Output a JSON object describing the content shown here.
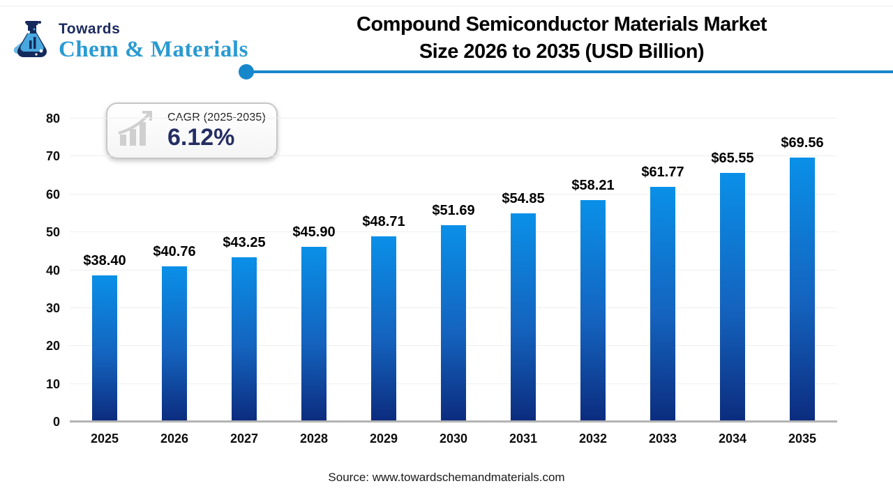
{
  "logo": {
    "line1": "Towards",
    "line2": "Chem & Materials"
  },
  "title": {
    "line1": "Compound Semiconductor Materials Market",
    "line2": "Size 2026 to 2035 (USD Billion)"
  },
  "cagr_badge": {
    "label": "CAGR (2025-2035)",
    "value": "6.12%"
  },
  "source": "Source: www.towardschemandmaterials.com",
  "colors": {
    "accent_line": "#1787cb",
    "bar_top": "#0a90e8",
    "bar_mid": "#1463be",
    "bar_bottom": "#0c2c7e",
    "cagr_value_navy": "#252e63",
    "logo_navy": "#1b2a5e",
    "logo_blue": "#2a9ad2",
    "axis_gray": "#b3b3b3"
  },
  "chart_data": {
    "type": "bar",
    "title": "Compound Semiconductor Materials Market Size 2026 to 2035 (USD Billion)",
    "categories": [
      "2025",
      "2026",
      "2027",
      "2028",
      "2029",
      "2030",
      "2031",
      "2032",
      "2033",
      "2034",
      "2035"
    ],
    "values": [
      38.4,
      40.76,
      43.25,
      45.9,
      48.71,
      51.69,
      54.85,
      58.21,
      61.77,
      65.55,
      69.56
    ],
    "value_labels": [
      "$38.40",
      "$40.76",
      "$43.25",
      "$45.90",
      "$48.71",
      "$51.69",
      "$54.85",
      "$58.21",
      "$61.77",
      "$65.55",
      "$69.56"
    ],
    "value_prefix": "$",
    "xlabel": "",
    "ylabel": "",
    "ylim": [
      0,
      80
    ],
    "yticks": [
      0,
      10,
      20,
      30,
      40,
      50,
      60,
      70,
      80
    ],
    "grid": true,
    "legend": null
  }
}
